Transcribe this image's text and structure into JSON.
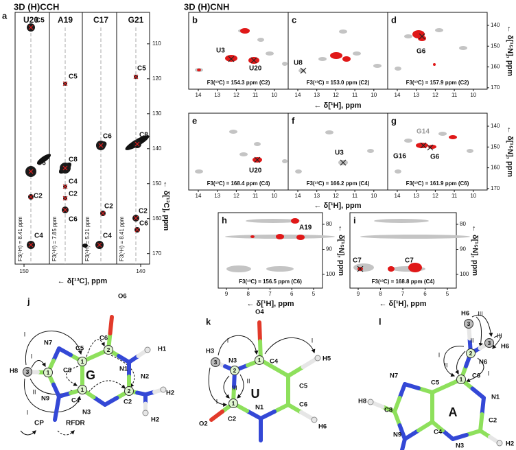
{
  "hcch": {
    "title": "3D (H)CCH",
    "label": "a",
    "strips": [
      {
        "residue": "U20",
        "f3": "F3(¹H) = 8.41 ppm",
        "peaks": [
          "C5",
          "C6",
          "C2",
          "C4"
        ]
      },
      {
        "residue": "A19",
        "f3": "F3(¹H) = 7.85 ppm",
        "peaks": [
          "C5",
          "C8",
          "C4",
          "C2",
          "C6"
        ]
      },
      {
        "residue": "C17",
        "f3": "F3(¹H) = 5.21 ppm",
        "peaks": [
          "C6",
          "C2",
          "C4"
        ]
      },
      {
        "residue": "G21",
        "f3": "F3(¹H) = 8.41 ppm",
        "peaks": [
          "C5",
          "C8",
          "C2",
          "C6"
        ]
      }
    ],
    "xticks": [
      150,
      140
    ],
    "yticks": [
      110,
      120,
      130,
      140,
      150,
      160,
      170
    ],
    "xlabel": "← δ[¹³C], ppm",
    "ylabel": "← δ[¹³C], ppm"
  },
  "cnh": {
    "title": "3D (H)CNH",
    "xlabel": "← δ[¹H], ppm",
    "ylabel": "← δ[¹⁵N], ppm",
    "xticks_wide": [
      14,
      13,
      12,
      11,
      10
    ],
    "yticks_wide": [
      140,
      150,
      160,
      170
    ],
    "xticks_narrow": [
      9,
      8,
      7,
      6,
      5
    ],
    "yticks_narrow": [
      80,
      90,
      100
    ],
    "panels": [
      {
        "label": "b",
        "f3": "F3(¹³C) = 154.3 ppm (C2)",
        "peaks": [
          "U3",
          "U20"
        ]
      },
      {
        "label": "c",
        "f3": "F3(¹³C) = 153.0 ppm (C2)",
        "peaks": [
          "U8"
        ]
      },
      {
        "label": "d",
        "f3": "F3(¹³C) = 157.9 ppm (C2)",
        "peaks": [
          "G6"
        ]
      },
      {
        "label": "e",
        "f3": "F3(¹³C) = 168.4 ppm (C4)",
        "peaks": [
          "U20"
        ]
      },
      {
        "label": "f",
        "f3": "F3(¹³C) = 166.2 ppm (C4)",
        "peaks": [
          "U3"
        ]
      },
      {
        "label": "g",
        "f3": "F3(¹³C) = 161.9 ppm (C6)",
        "peaks": [
          "G14",
          "G16",
          "G6"
        ]
      },
      {
        "label": "h",
        "f3": "F3(¹³C) = 156.5 ppm (C6)",
        "peaks": [
          "A19"
        ]
      },
      {
        "label": "i",
        "f3": "F3(¹³C) = 168.8 ppm (C4)",
        "peaks": [
          "C7",
          "C7"
        ]
      }
    ]
  },
  "molecules": [
    {
      "panel": "j",
      "name": "G",
      "atoms": [
        "C5",
        "C6",
        "O6",
        "N7",
        "H8",
        "C8",
        "N1",
        "H1",
        "N9",
        "C4",
        "N3",
        "C2",
        "N2",
        "H2",
        "H2"
      ],
      "spins": [
        "3",
        "1",
        "1",
        "2",
        "1",
        "2"
      ],
      "transfers": [
        "I",
        "I",
        "II",
        "I"
      ]
    },
    {
      "panel": "k",
      "name": "U",
      "atoms": [
        "O4",
        "H3",
        "N3",
        "C4",
        "H5",
        "C5",
        "O2",
        "C2",
        "N1",
        "C6",
        "H6"
      ],
      "spins": [
        "3",
        "2",
        "1",
        "1"
      ],
      "transfers": [
        "I",
        "I",
        "III",
        "II",
        "I"
      ]
    },
    {
      "panel": "l",
      "name": "A",
      "atoms": [
        "H6",
        "H6",
        "N6",
        "N7",
        "C5",
        "C6",
        "N1",
        "H8",
        "C8",
        "C2",
        "N9",
        "C4",
        "N3",
        "H2"
      ],
      "spins": [
        "3",
        "3",
        "2",
        "1"
      ],
      "transfers": [
        "III",
        "III",
        "II",
        "I",
        "II",
        "I"
      ]
    }
  ],
  "legend": [
    "CP",
    "RFDR"
  ]
}
